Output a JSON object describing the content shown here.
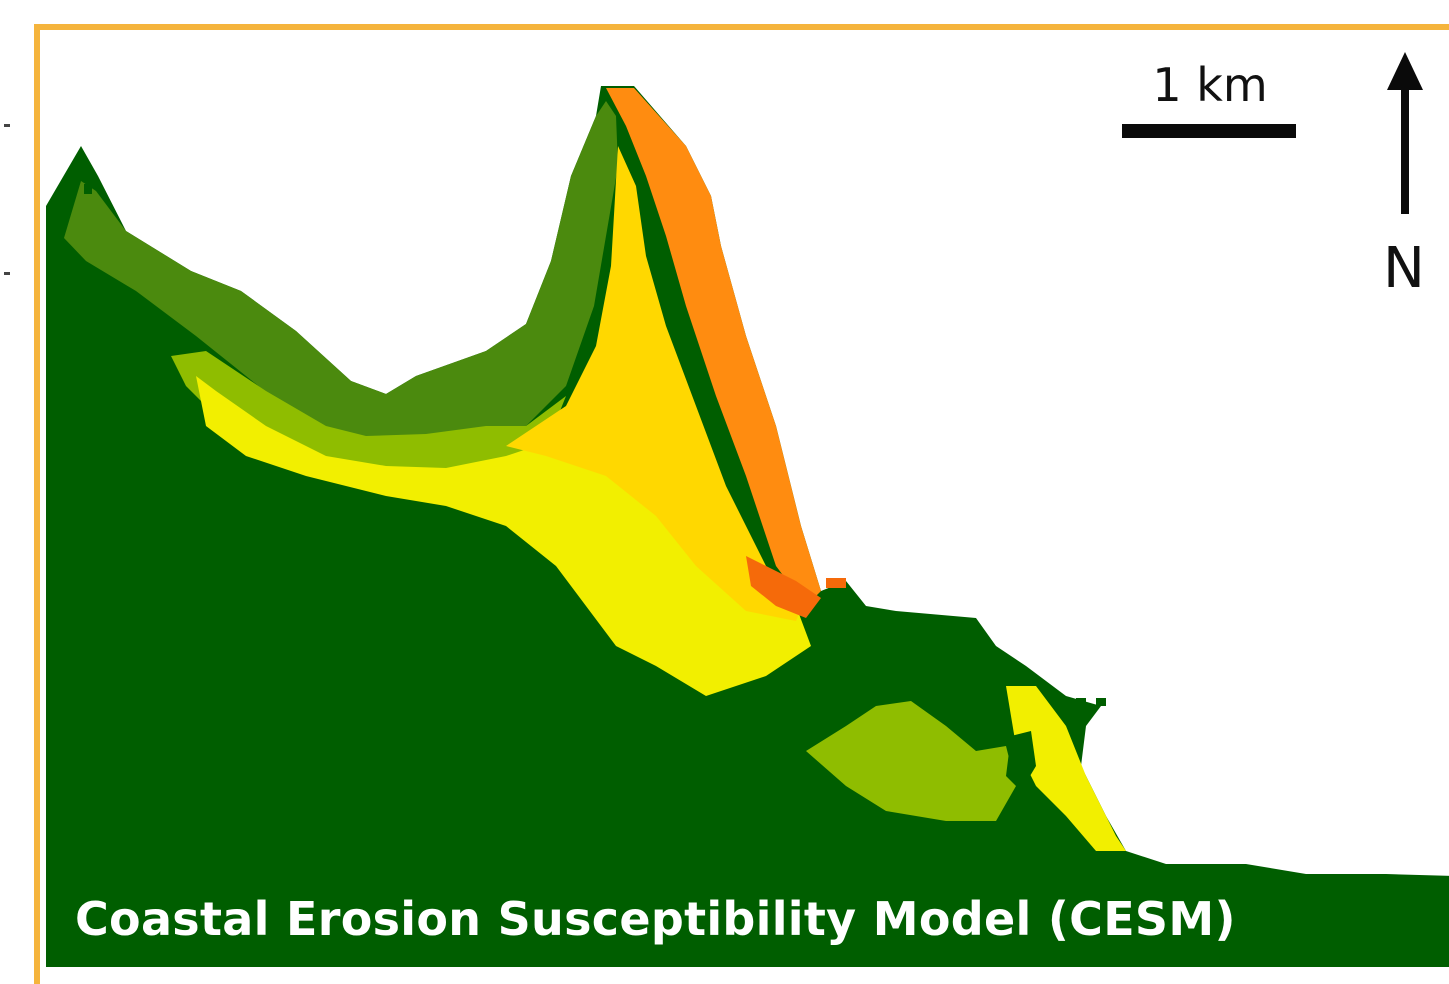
{
  "map": {
    "title": "Coastal Erosion Susceptibility Model (CESM)",
    "scale_bar_label": "1 km",
    "north_label": "N",
    "frame_color": "#f5b43c",
    "susceptibility_colors": {
      "land": "#005e00",
      "very_low": "#4b8a0e",
      "low": "#8fbd00",
      "moderate": "#f2ef00",
      "high": "#ffd800",
      "very_high": "#ff8c10",
      "extreme": "#f56a0a"
    },
    "icons": [
      "north-arrow-icon",
      "scale-bar-icon"
    ]
  }
}
